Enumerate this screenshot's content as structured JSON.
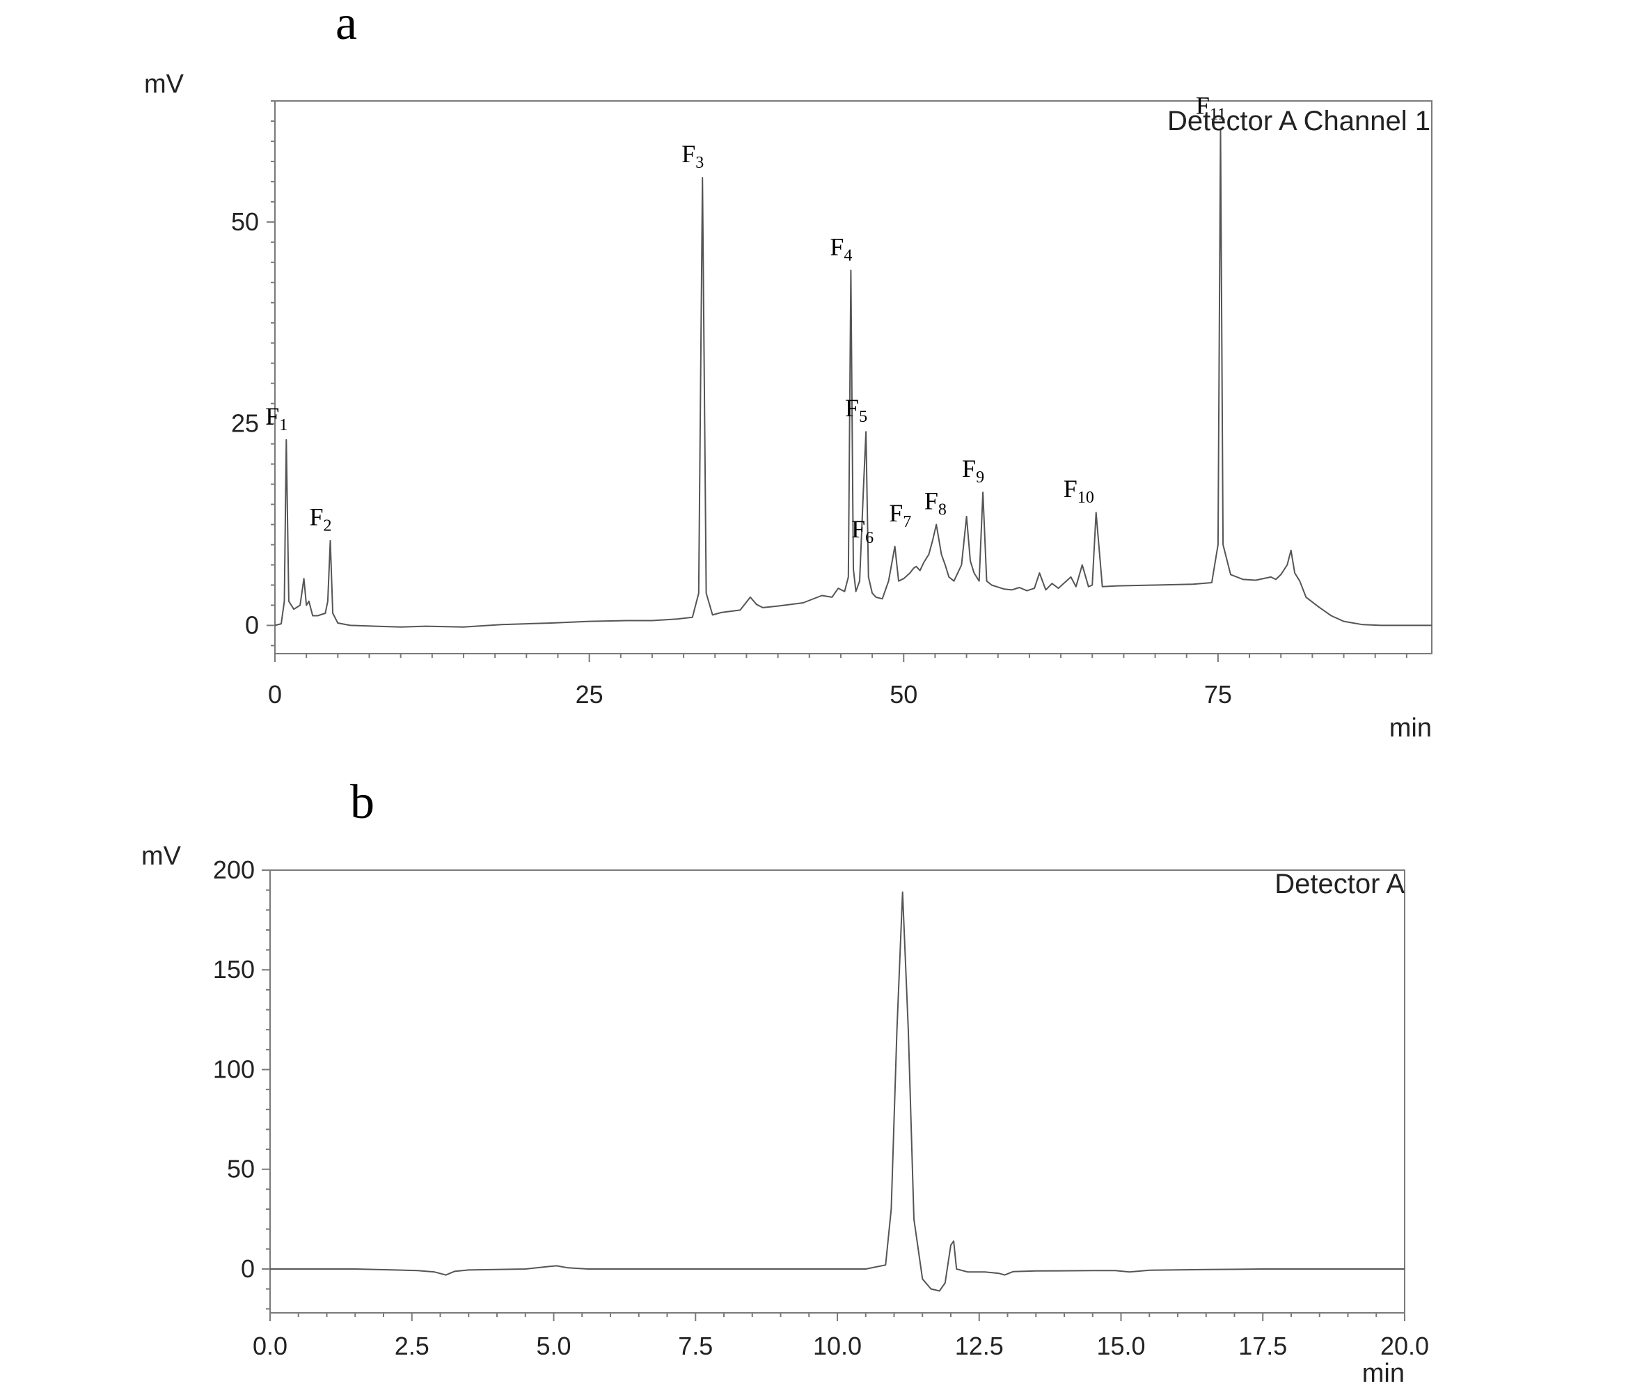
{
  "chart_data": [
    {
      "panel_label": "a",
      "type": "line",
      "xlabel": "min",
      "ylabel": "mV",
      "legend_text": "Detector A Channel 1",
      "xlim": [
        0,
        92
      ],
      "ylim": [
        -3.5,
        65
      ],
      "x_ticks": [
        0,
        25,
        50,
        75
      ],
      "y_ticks": [
        0,
        25,
        50
      ],
      "x_tick_labels": [
        "0",
        "25",
        "50",
        "75"
      ],
      "y_tick_labels": [
        "0",
        "25",
        "50"
      ],
      "series": [
        {
          "x": [
            0,
            0.5,
            0.75,
            0.9,
            1.1,
            1.5,
            2.0,
            2.3,
            2.5,
            2.7,
            3.0,
            3.4,
            4.0,
            4.2,
            4.4,
            4.6,
            5.0,
            6,
            8,
            10,
            12,
            15,
            18,
            20,
            22,
            25,
            28,
            30,
            32,
            33.2,
            33.7,
            34.0,
            34.3,
            34.8,
            35.5,
            37,
            37.8,
            38.3,
            38.8,
            40,
            42,
            43.5,
            44.3,
            44.8,
            45.3,
            45.6,
            45.8,
            46.0,
            46.2,
            46.5,
            46.8,
            47.0,
            47.2,
            47.5,
            47.8,
            48.3,
            48.8,
            49.3,
            49.6,
            50.0,
            50.5,
            50.8,
            51.0,
            51.3,
            51.6,
            52.0,
            52.3,
            52.6,
            53.0,
            53.3,
            53.6,
            54.0,
            54.6,
            55.0,
            55.3,
            55.6,
            56.0,
            56.3,
            56.6,
            57.0,
            57.4,
            58.0,
            58.6,
            59.2,
            59.8,
            60.4,
            60.8,
            61.3,
            61.8,
            62.3,
            62.8,
            63.3,
            63.7,
            64.2,
            64.7,
            65.0,
            65.3,
            65.8,
            67,
            70,
            73,
            74.5,
            75.0,
            75.2,
            75.4,
            76.0,
            77,
            78,
            79.2,
            79.6,
            80.0,
            80.5,
            80.8,
            81.1,
            81.5,
            82,
            83,
            84,
            85,
            86.5,
            88,
            90,
            92
          ],
          "y": [
            0,
            0.2,
            3,
            23,
            3,
            2,
            2.5,
            5.8,
            2.5,
            3,
            1.2,
            1.2,
            1.5,
            3,
            10.5,
            1.5,
            0.3,
            0,
            -0.1,
            -0.2,
            -0.1,
            -0.2,
            0.1,
            0.2,
            0.3,
            0.5,
            0.6,
            0.6,
            0.8,
            1,
            4,
            55.5,
            4,
            1.3,
            1.6,
            1.9,
            3.5,
            2.6,
            2.2,
            2.4,
            2.8,
            3.7,
            3.5,
            4.6,
            4.2,
            6,
            44,
            7,
            4.2,
            5.5,
            17,
            24,
            6,
            4,
            3.5,
            3.3,
            5.5,
            9.8,
            5.5,
            5.8,
            6.5,
            7.1,
            7.3,
            6.8,
            7.8,
            8.8,
            10.5,
            12.5,
            8.8,
            7.5,
            6,
            5.5,
            7.5,
            13.5,
            8,
            6.5,
            5.5,
            16.5,
            5.5,
            5,
            4.8,
            4.5,
            4.4,
            4.7,
            4.3,
            4.6,
            6.5,
            4.4,
            5.2,
            4.6,
            5.3,
            6,
            4.8,
            7.5,
            4.8,
            5,
            14,
            4.8,
            4.9,
            5.0,
            5.1,
            5.3,
            10,
            61.5,
            10,
            6.3,
            5.7,
            5.6,
            6,
            5.7,
            6.3,
            7.5,
            9.3,
            6.5,
            5.5,
            3.5,
            2.3,
            1.2,
            0.5,
            0.1,
            0,
            0,
            0
          ]
        }
      ],
      "peak_labels": [
        {
          "main": "F",
          "sub": "1",
          "x": 0.9,
          "y": 23
        },
        {
          "main": "F",
          "sub": "2",
          "x": 4.4,
          "y": 10.5
        },
        {
          "main": "F",
          "sub": "3",
          "x": 34.0,
          "y": 55.5
        },
        {
          "main": "F",
          "sub": "4",
          "x": 45.8,
          "y": 44
        },
        {
          "main": "F",
          "sub": "5",
          "x": 47.0,
          "y": 24
        },
        {
          "main": "F",
          "sub": "6",
          "x": 47.5,
          "y": 9
        },
        {
          "main": "F",
          "sub": "7",
          "x": 50.5,
          "y": 11
        },
        {
          "main": "F",
          "sub": "8",
          "x": 53.3,
          "y": 12.5
        },
        {
          "main": "F",
          "sub": "9",
          "x": 56.3,
          "y": 16.5
        },
        {
          "main": "F",
          "sub": "10",
          "x": 64.7,
          "y": 14
        },
        {
          "main": "F",
          "sub": "11",
          "x": 75.2,
          "y": 61.5
        }
      ]
    },
    {
      "panel_label": "b",
      "type": "line",
      "xlabel": "min",
      "ylabel": "mV",
      "legend_text": "Detector A",
      "xlim": [
        0,
        20
      ],
      "ylim": [
        -22,
        200
      ],
      "x_ticks": [
        0,
        2.5,
        5,
        7.5,
        10,
        12.5,
        15,
        17.5,
        20
      ],
      "y_ticks": [
        0,
        50,
        100,
        150,
        200
      ],
      "x_tick_labels": [
        "0.0",
        "2.5",
        "5.0",
        "7.5",
        "10.0",
        "12.5",
        "15.0",
        "17.5",
        "20.0"
      ],
      "y_tick_labels": [
        "0",
        "50",
        "100",
        "150",
        "200"
      ],
      "series": [
        {
          "x": [
            0,
            1.5,
            2.2,
            2.6,
            2.9,
            3.1,
            3.25,
            3.5,
            4.5,
            4.9,
            5.05,
            5.25,
            5.6,
            7,
            9,
            10.5,
            10.85,
            10.95,
            11.05,
            11.15,
            11.25,
            11.35,
            11.5,
            11.65,
            11.8,
            11.9,
            12.0,
            12.05,
            12.1,
            12.3,
            12.6,
            12.85,
            12.95,
            13.1,
            13.5,
            14.5,
            14.9,
            15.15,
            15.5,
            16.5,
            17.5,
            18.5,
            20
          ],
          "y": [
            0,
            0,
            -0.5,
            -0.8,
            -1.5,
            -3,
            -1.2,
            -0.5,
            0,
            1.2,
            1.6,
            0.6,
            0,
            0,
            0,
            0,
            2,
            30,
            120,
            189,
            120,
            25,
            -5,
            -10,
            -11,
            -7,
            12,
            14,
            0,
            -1.5,
            -1.5,
            -2.2,
            -3,
            -1.3,
            -1,
            -0.8,
            -0.8,
            -1.5,
            -0.6,
            -0.3,
            0,
            0,
            0
          ]
        }
      ]
    }
  ]
}
